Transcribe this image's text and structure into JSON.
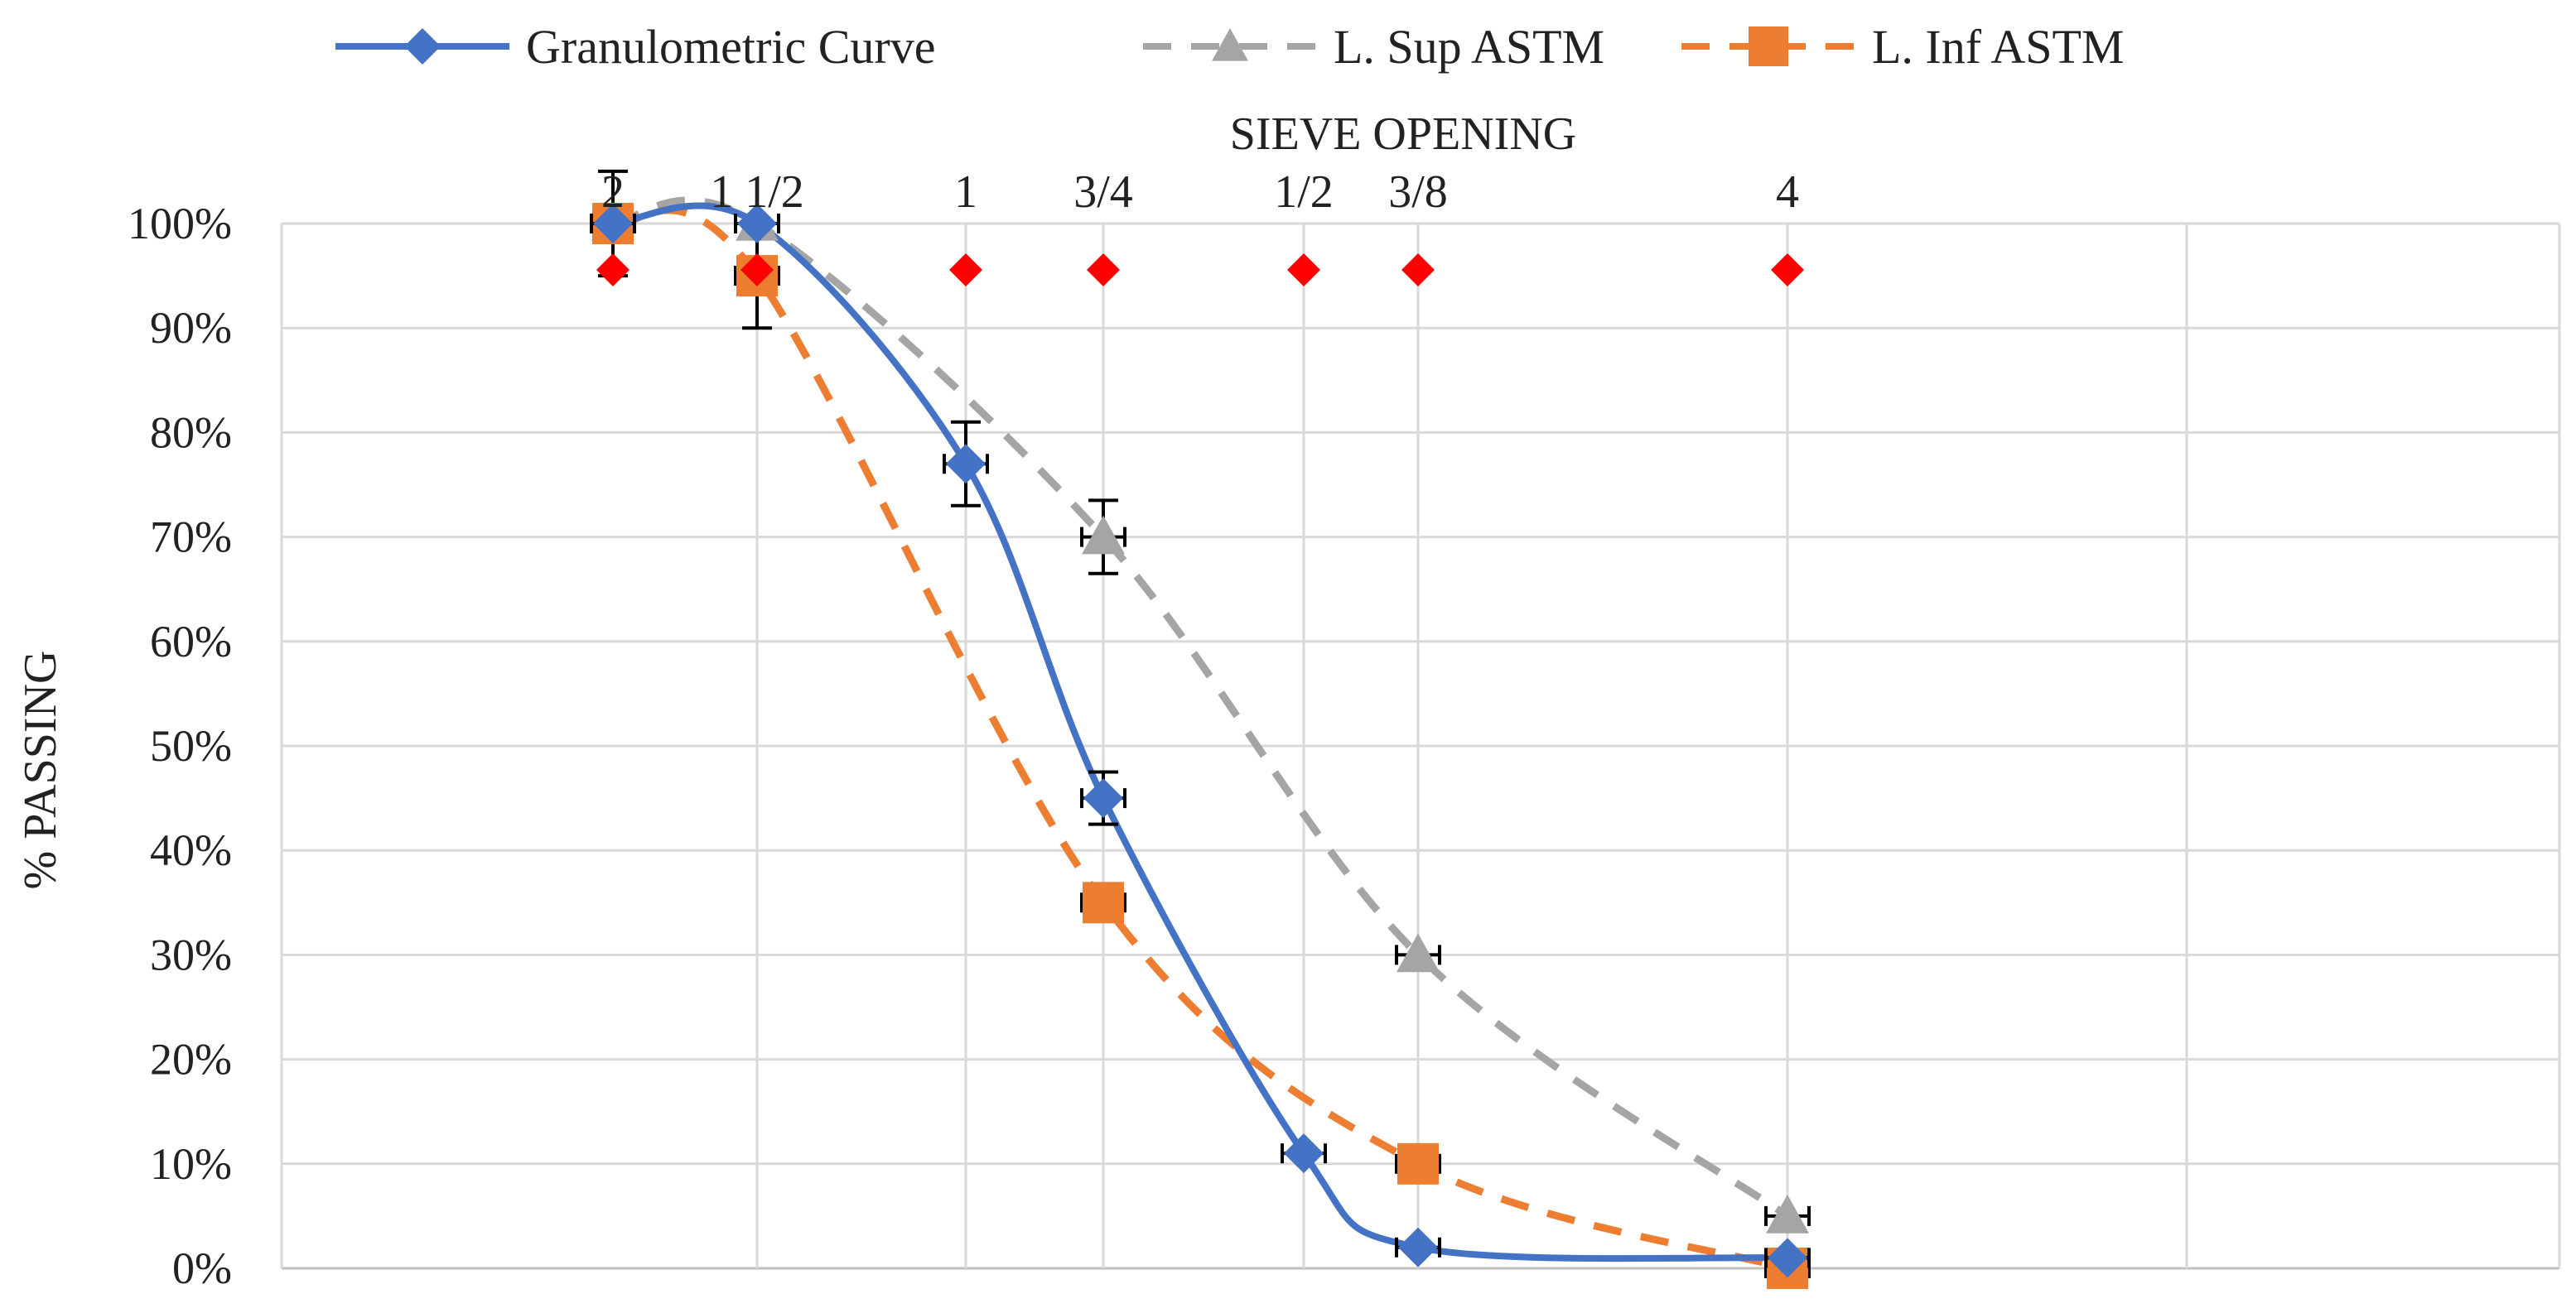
{
  "chart_data": {
    "type": "line",
    "title": "",
    "xlabel": "SIEVE OPENING",
    "ylabel": "% PASSING",
    "ylim": [
      0,
      100
    ],
    "y_ticks": [
      "0%",
      "10%",
      "20%",
      "30%",
      "40%",
      "50%",
      "60%",
      "70%",
      "80%",
      "90%",
      "100%"
    ],
    "y_tick_values": [
      0,
      10,
      20,
      30,
      40,
      50,
      60,
      70,
      80,
      90,
      100
    ],
    "grid": true,
    "legend_position": "top",
    "sieve_labels": [
      "2",
      "1 1/2",
      "1",
      "3/4",
      "1/2",
      "3/8",
      "4"
    ],
    "sieve_marker_color": "#ff0000",
    "series": [
      {
        "name": "Granulometric Curve",
        "marker": "diamond",
        "dash": "solid",
        "color": "#4472c4",
        "smooth": true,
        "values": [
          100,
          100,
          77,
          45,
          11,
          2,
          1
        ],
        "error": [
          0,
          0,
          4,
          2.5,
          0,
          0,
          0
        ]
      },
      {
        "name": "L. Sup ASTM",
        "marker": "triangle",
        "dash": "dashed",
        "color": "#a5a5a5",
        "smooth": true,
        "values": [
          100,
          100,
          null,
          70,
          null,
          30,
          5
        ],
        "error": [
          0,
          0,
          0,
          3.5,
          0,
          0,
          0
        ]
      },
      {
        "name": "L. Inf ASTM",
        "marker": "square",
        "dash": "dashed",
        "color": "#ed7d31",
        "smooth": true,
        "values": [
          100,
          95,
          null,
          35,
          null,
          10,
          0
        ],
        "error": [
          5,
          5,
          0,
          0,
          0,
          0,
          0
        ]
      }
    ]
  }
}
